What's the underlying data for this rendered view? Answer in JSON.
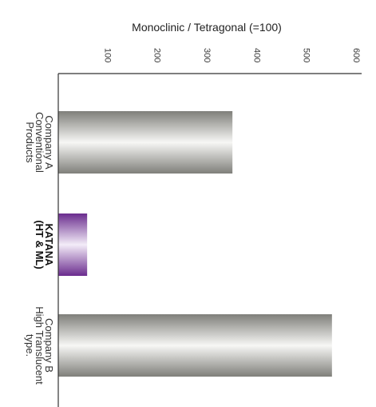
{
  "chart_data": {
    "type": "bar",
    "orientation": "horizontal",
    "title": "Monoclinic / Tetragonal (=100)",
    "xlim": [
      0,
      600
    ],
    "ticks": [
      100,
      200,
      300,
      400,
      500,
      600
    ],
    "categories": [
      {
        "lines": [
          "Company A",
          "Conventional",
          "Products"
        ],
        "bold": false
      },
      {
        "lines": [
          "KATANA",
          "(HT & ML)"
        ],
        "bold": true
      },
      {
        "lines": [
          "Company B",
          "High Translucent",
          "type."
        ],
        "bold": false
      }
    ],
    "values": [
      350,
      58,
      550
    ],
    "colors": {
      "gray_dark": "#8a8a84",
      "gray_light": "#f4f4f2",
      "purple_dark": "#6a2c8e",
      "purple_light": "#f3ecf8"
    }
  }
}
